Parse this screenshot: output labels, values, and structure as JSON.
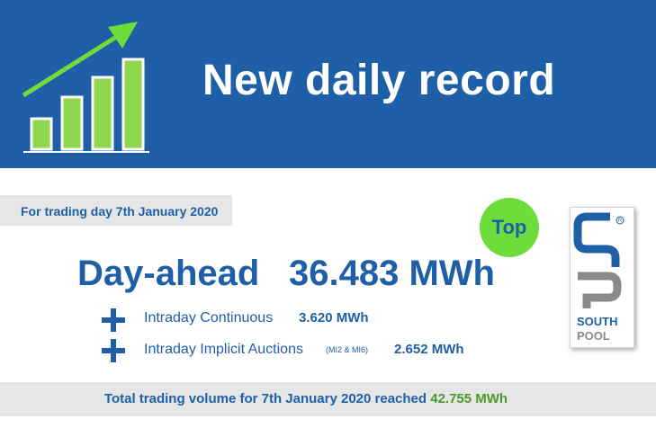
{
  "banner": {
    "title": "New daily record",
    "icon": "rising-bar-chart-icon"
  },
  "date_line": "For trading day 7th January 2020",
  "badge": "Top",
  "day_ahead": {
    "label": "Day-ahead",
    "value": "36.483 MWh"
  },
  "rows": [
    {
      "label": "Intraday Continuous",
      "note": "",
      "value": "3.620 MWh"
    },
    {
      "label": "Intraday Implicit Auctions",
      "note": "(MI2 & MI6)",
      "value": "2.652 MWh"
    }
  ],
  "logo": {
    "line1": "SOUTH",
    "line2": "POOL",
    "mark": "sp-logo-icon"
  },
  "footer": {
    "text": "Total trading volume for 7th January 2020 reached ",
    "value": "42.755 MWh"
  },
  "colors": {
    "brand_blue": "#1f5fa8",
    "accent_green": "#6ddd3b",
    "value_green": "#4c9a2a",
    "strip_gray": "#e6e6e6"
  }
}
